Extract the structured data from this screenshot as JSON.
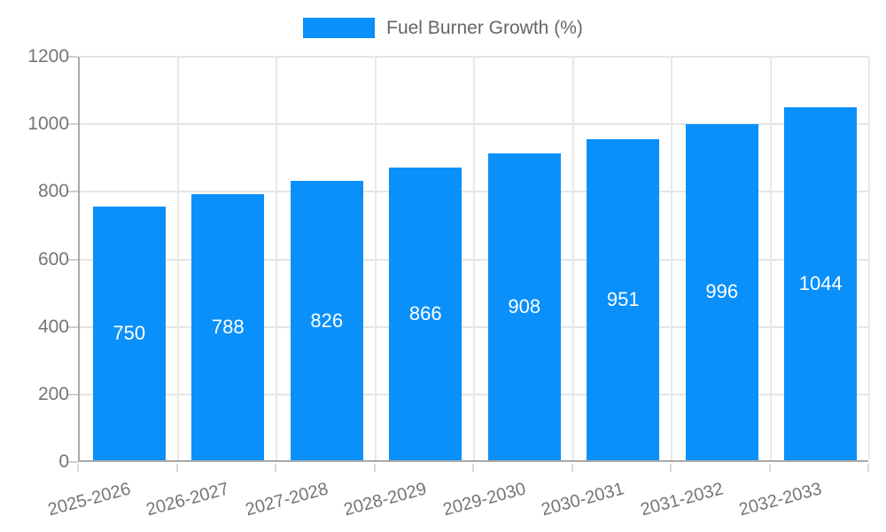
{
  "chart_data": {
    "type": "bar",
    "title": "",
    "legend": {
      "label": "Fuel Burner Growth (%)",
      "position": "top"
    },
    "categories": [
      "2025-2026",
      "2026-2027",
      "2027-2028",
      "2028-2029",
      "2029-2030",
      "2030-2031",
      "2031-2032",
      "2032-2033"
    ],
    "values": [
      750,
      788,
      826,
      866,
      908,
      951,
      996,
      1044
    ],
    "xlabel": "",
    "ylabel": "",
    "ylim": [
      0,
      1200
    ],
    "yticks": [
      0,
      200,
      400,
      600,
      800,
      1000,
      1200
    ],
    "grid": true,
    "colors": {
      "bar": "#0a90fa",
      "grid": "#e5e5e5",
      "axis": "#a8a8a8",
      "tick_text": "#757575",
      "legend_text": "#666666",
      "bar_label_text": "#ffffff",
      "background": "#ffffff"
    }
  }
}
